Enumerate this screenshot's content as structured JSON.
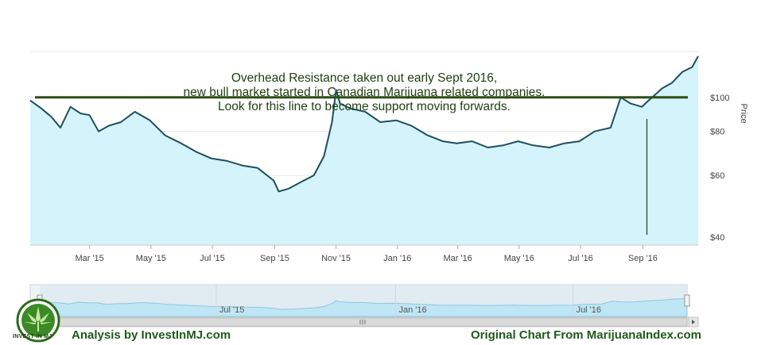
{
  "chart_data": {
    "type": "area",
    "ylabel": "Price",
    "y_scale": "log",
    "ylim": [
      38,
      135
    ],
    "y_ticks": [
      40,
      60,
      80,
      100
    ],
    "y_tick_labels": [
      "$40",
      "$60",
      "$80",
      "$100"
    ],
    "x_ticks": [
      "Mar '15",
      "May '15",
      "Jul '15",
      "Sep '15",
      "Nov '15",
      "Jan '16",
      "Mar '16",
      "May '16",
      "Jul '16",
      "Sep '16"
    ],
    "x_tick_dates": [
      "2015-03-01",
      "2015-05-01",
      "2015-07-01",
      "2015-09-01",
      "2015-11-01",
      "2016-01-01",
      "2016-03-01",
      "2016-05-01",
      "2016-07-01",
      "2016-09-01"
    ],
    "xlim": [
      "2015-01-01",
      "2016-10-26"
    ],
    "series": [
      {
        "points": [
          [
            "2015-01-01",
            98
          ],
          [
            "2015-01-12",
            93
          ],
          [
            "2015-01-22",
            88
          ],
          [
            "2015-01-31",
            82
          ],
          [
            "2015-02-10",
            94
          ],
          [
            "2015-02-20",
            90
          ],
          [
            "2015-03-01",
            89
          ],
          [
            "2015-03-10",
            80
          ],
          [
            "2015-03-20",
            83
          ],
          [
            "2015-04-01",
            85
          ],
          [
            "2015-04-15",
            91
          ],
          [
            "2015-04-30",
            86
          ],
          [
            "2015-05-15",
            78
          ],
          [
            "2015-05-31",
            74
          ],
          [
            "2015-06-15",
            70
          ],
          [
            "2015-06-30",
            67
          ],
          [
            "2015-07-15",
            66
          ],
          [
            "2015-07-31",
            64
          ],
          [
            "2015-08-15",
            63
          ],
          [
            "2015-08-31",
            58
          ],
          [
            "2015-09-05",
            54
          ],
          [
            "2015-09-15",
            55
          ],
          [
            "2015-09-30",
            58
          ],
          [
            "2015-10-10",
            60
          ],
          [
            "2015-10-20",
            68
          ],
          [
            "2015-10-28",
            85
          ],
          [
            "2015-11-01",
            105
          ],
          [
            "2015-11-05",
            96
          ],
          [
            "2015-11-15",
            93
          ],
          [
            "2015-11-30",
            91
          ],
          [
            "2015-12-15",
            85
          ],
          [
            "2015-12-31",
            86
          ],
          [
            "2016-01-15",
            83
          ],
          [
            "2016-01-31",
            78
          ],
          [
            "2016-02-15",
            75
          ],
          [
            "2016-02-29",
            74
          ],
          [
            "2016-03-15",
            75
          ],
          [
            "2016-03-31",
            72
          ],
          [
            "2016-04-15",
            73
          ],
          [
            "2016-04-30",
            75
          ],
          [
            "2016-05-15",
            73
          ],
          [
            "2016-05-31",
            72
          ],
          [
            "2016-06-15",
            74
          ],
          [
            "2016-06-30",
            75
          ],
          [
            "2016-07-15",
            80
          ],
          [
            "2016-07-31",
            82
          ],
          [
            "2016-08-10",
            100
          ],
          [
            "2016-08-20",
            96
          ],
          [
            "2016-08-31",
            94
          ],
          [
            "2016-09-05",
            97
          ],
          [
            "2016-09-12",
            101
          ],
          [
            "2016-09-20",
            106
          ],
          [
            "2016-09-30",
            110
          ],
          [
            "2016-10-10",
            118
          ],
          [
            "2016-10-20",
            122
          ],
          [
            "2016-10-26",
            131
          ]
        ]
      }
    ],
    "resistance_level": 100,
    "vertical_marker_date": "2016-09-05",
    "annotation": [
      "Overhead Resistance taken out early Sept 2016,",
      "new bull market started in Canadian Marijuana related companies.",
      "Look for this line to become support moving forwards."
    ],
    "navigator_labels": [
      "Jul '15",
      "Jan '16",
      "Jul '16"
    ],
    "navigator_label_dates": [
      "2015-07-01",
      "2016-01-01",
      "2016-07-01"
    ],
    "colors": {
      "line": "#1d4f5e",
      "fill": "#d4f3fb",
      "resistance": "#2d4d15",
      "marker": "#2d4d15",
      "annotation_text": "#1f3f10"
    }
  },
  "footer": {
    "left": "Analysis by InvestInMJ.com",
    "right": "Original Chart From MarijuanaIndex.com",
    "logo_text": "INVEST IN MJ"
  }
}
